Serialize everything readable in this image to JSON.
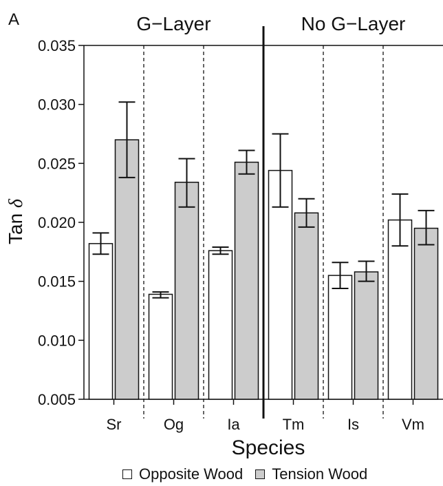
{
  "panel_label": "A",
  "chart_data": {
    "type": "bar",
    "xlabel": "Species",
    "ylabel_text": "Tan",
    "ylabel_symbol": "δ",
    "ylim": [
      0.005,
      0.035
    ],
    "yticks": [
      "0.005",
      "0.010",
      "0.015",
      "0.020",
      "0.025",
      "0.030",
      "0.035"
    ],
    "categories": [
      "Sr",
      "Og",
      "Ia",
      "Tm",
      "Is",
      "Vm"
    ],
    "group_labels": [
      "G−Layer",
      "No G−Layer"
    ],
    "groups": [
      {
        "label": "G−Layer",
        "categories": [
          "Sr",
          "Og",
          "Ia"
        ]
      },
      {
        "label": "No G−Layer",
        "categories": [
          "Tm",
          "Is",
          "Vm"
        ]
      }
    ],
    "series": [
      {
        "name": "Opposite Wood",
        "color": "#ffffff",
        "values": [
          0.0182,
          0.0139,
          0.0176,
          0.0244,
          0.0155,
          0.0202
        ],
        "err_low": [
          0.0173,
          0.0136,
          0.0173,
          0.0213,
          0.0144,
          0.018
        ],
        "err_high": [
          0.0191,
          0.0141,
          0.0179,
          0.0275,
          0.0166,
          0.0224
        ]
      },
      {
        "name": "Tension Wood",
        "color": "#cccccc",
        "values": [
          0.027,
          0.0234,
          0.0251,
          0.0208,
          0.0158,
          0.0195
        ],
        "err_low": [
          0.0238,
          0.0213,
          0.0241,
          0.0196,
          0.015,
          0.0181
        ],
        "err_high": [
          0.0302,
          0.0254,
          0.0261,
          0.022,
          0.0167,
          0.021
        ]
      }
    ],
    "legend_position": "bottom"
  },
  "legend": {
    "items": [
      {
        "label": "Opposite Wood",
        "color": "#ffffff"
      },
      {
        "label": "Tension Wood",
        "color": "#cccccc"
      }
    ]
  }
}
